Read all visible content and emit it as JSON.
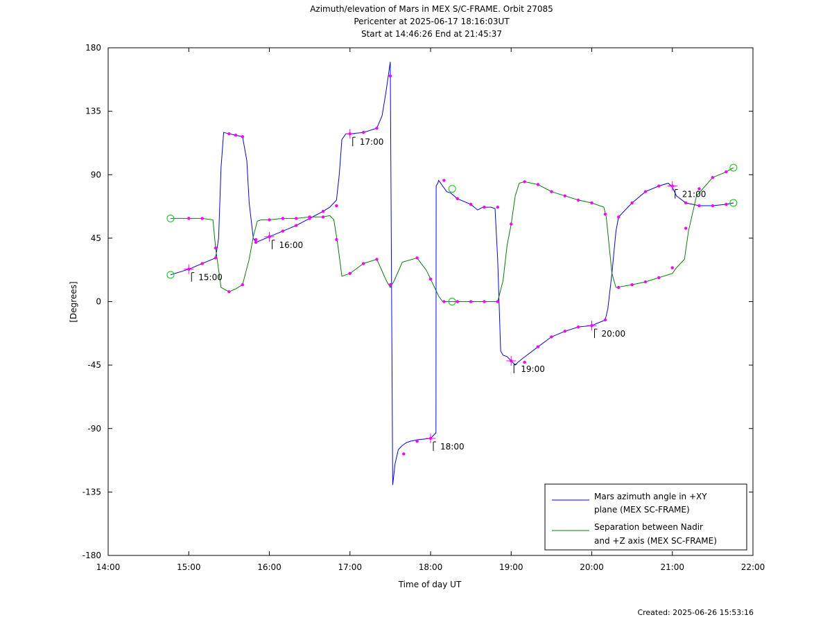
{
  "title": [
    "Azimuth/elevation of Mars in MEX S/C-FRAME.  Orbit 27085",
    "Pericenter at 2025-06-17 18:16:03UT",
    "Start at 14:46:26 End at 21:45:37"
  ],
  "created": "Created: 2025-06-26 15:53:16",
  "chart_data": {
    "type": "line",
    "xlabel": "Time of day UT",
    "ylabel": "[Degrees]",
    "xlim": [
      14,
      22
    ],
    "ylim": [
      -180,
      180
    ],
    "xticks": [
      14,
      15,
      16,
      17,
      18,
      19,
      20,
      21,
      22
    ],
    "xtick_labels": [
      "14:00",
      "15:00",
      "16:00",
      "17:00",
      "18:00",
      "19:00",
      "20:00",
      "21:00",
      "22:00"
    ],
    "yticks": [
      180,
      135,
      90,
      45,
      0,
      -45,
      -90,
      -135,
      -180
    ],
    "ytick_labels": [
      "180",
      "135",
      "90",
      "45",
      "0",
      "-45",
      "-90",
      "-135",
      "-180"
    ],
    "legend_position": "bottom-right",
    "series": [
      {
        "name": "Mars azimuth angle in +XY plane (MEX SC-FRAME)",
        "legend_lines": [
          "Mars azimuth angle in +XY",
          "plane (MEX SC-FRAME)"
        ],
        "color": "#0000ff",
        "x": [
          14.774,
          15.0,
          15.167,
          15.333,
          15.37,
          15.4,
          15.433,
          15.5,
          15.583,
          15.667,
          15.72,
          15.75,
          15.8,
          15.833,
          16.0,
          16.167,
          16.333,
          16.5,
          16.667,
          16.75,
          16.833,
          16.867,
          16.9,
          16.95,
          17.0,
          17.167,
          17.333,
          17.4,
          17.45,
          17.5,
          17.53,
          17.56,
          17.6,
          17.65,
          17.7,
          17.75,
          17.833,
          18.0,
          18.067,
          18.07,
          18.09,
          18.1,
          18.15,
          18.2,
          18.25,
          18.333,
          18.5,
          18.583,
          18.65,
          18.667,
          18.75,
          18.8,
          18.833,
          18.87,
          18.9,
          18.95,
          19.0,
          19.05,
          19.083,
          19.15,
          19.333,
          19.5,
          19.667,
          19.833,
          20.0,
          20.167,
          20.2,
          20.25,
          20.3,
          20.333,
          20.5,
          20.667,
          20.833,
          20.95,
          21.0,
          21.05,
          21.167,
          21.333,
          21.5,
          21.667,
          21.758
        ],
        "y": [
          19,
          23,
          27,
          31,
          45,
          95,
          120,
          119,
          118,
          117,
          100,
          70,
          45,
          42,
          46,
          50,
          54,
          59,
          64,
          67,
          72,
          90,
          115,
          119,
          119,
          120,
          123,
          132,
          150,
          170,
          -130,
          -115,
          -105,
          -102,
          -100,
          -99,
          -98,
          -97,
          -93,
          82,
          84,
          86,
          82,
          78,
          77,
          73,
          69,
          65,
          67,
          67,
          67,
          66,
          30,
          -35,
          -38,
          -39,
          -42,
          -45,
          -43,
          -40,
          -32,
          -25,
          -21,
          -18,
          -17,
          -13,
          -5,
          20,
          50,
          60,
          70,
          78,
          82,
          84,
          81,
          75,
          70,
          68,
          68,
          69,
          70
        ]
      },
      {
        "name": "Separation between Nadir and +Z axis (MEX SC-FRAME)",
        "legend_lines": [
          "Separation between Nadir",
          "and +Z axis (MEX SC-FRAME)"
        ],
        "color": "#008000",
        "x": [
          14.774,
          15.0,
          15.167,
          15.3,
          15.333,
          15.4,
          15.5,
          15.583,
          15.667,
          15.75,
          15.8,
          15.85,
          15.9,
          16.0,
          16.167,
          16.333,
          16.5,
          16.667,
          16.75,
          16.8,
          16.85,
          16.9,
          17.0,
          17.167,
          17.333,
          17.45,
          17.5,
          17.55,
          17.65,
          17.833,
          17.95,
          18.0,
          18.05,
          18.1,
          18.15,
          18.2,
          18.27,
          18.333,
          18.5,
          18.667,
          18.833,
          18.9,
          18.95,
          19.0,
          19.05,
          19.1,
          19.167,
          19.333,
          19.5,
          19.667,
          19.833,
          20.0,
          20.15,
          20.18,
          20.25,
          20.3,
          20.5,
          20.667,
          20.833,
          21.0,
          21.05,
          21.15,
          21.2,
          21.3,
          21.5,
          21.667,
          21.758
        ],
        "y": [
          59,
          59,
          59,
          58,
          38,
          10,
          7,
          9,
          12,
          30,
          46,
          57,
          58,
          58,
          59,
          59,
          60,
          60,
          61,
          58,
          40,
          18,
          20,
          27,
          30,
          15,
          10,
          15,
          28,
          31,
          22,
          16,
          10,
          4,
          0,
          0,
          0,
          0,
          0,
          0,
          0,
          15,
          40,
          55,
          75,
          84,
          85,
          83,
          78,
          75,
          72,
          70,
          67,
          60,
          20,
          10,
          12,
          14,
          17,
          20,
          24,
          30,
          50,
          75,
          88,
          92,
          95
        ]
      }
    ],
    "markers_blue": {
      "x": [
        15.0,
        15.167,
        15.333,
        15.5,
        15.583,
        15.667,
        15.833,
        16.0,
        16.167,
        16.333,
        16.5,
        16.667,
        16.833,
        17.0,
        17.167,
        17.333,
        17.5,
        17.667,
        17.833,
        18.0,
        18.167,
        18.333,
        18.5,
        18.667,
        18.833,
        19.0,
        19.167,
        19.333,
        19.5,
        19.667,
        19.833,
        20.0,
        20.167,
        20.333,
        20.5,
        20.667,
        20.833,
        21.0,
        21.167,
        21.333,
        21.5,
        21.667
      ],
      "y": [
        23,
        27,
        31,
        119,
        118,
        117,
        42,
        46,
        50,
        54,
        59,
        64,
        68,
        119,
        120,
        123,
        160,
        -108,
        -99,
        -97,
        86,
        73,
        69,
        67,
        67,
        -42,
        -43,
        -32,
        -25,
        -21,
        -18,
        -17,
        -13,
        60,
        70,
        78,
        82,
        82,
        70,
        68,
        68,
        69
      ]
    },
    "markers_green": {
      "x": [
        15.0,
        15.167,
        15.333,
        15.5,
        15.667,
        15.833,
        16.0,
        16.167,
        16.333,
        16.5,
        16.667,
        16.833,
        17.0,
        17.167,
        17.333,
        17.5,
        17.833,
        18.0,
        18.167,
        18.333,
        18.5,
        18.667,
        18.833,
        19.0,
        19.167,
        19.333,
        19.5,
        19.667,
        19.833,
        20.0,
        20.167,
        20.333,
        20.5,
        20.667,
        20.833,
        21.0,
        21.167,
        21.333,
        21.5,
        21.667
      ],
      "y": [
        59,
        59,
        38,
        7,
        12,
        44,
        58,
        59,
        59,
        60,
        60,
        44,
        20,
        27,
        30,
        12,
        31,
        16,
        0,
        0,
        0,
        0,
        0,
        55,
        85,
        83,
        78,
        75,
        72,
        70,
        62,
        10,
        12,
        14,
        17,
        24,
        52,
        80,
        88,
        92
      ]
    },
    "start_end_circles": [
      {
        "x": 14.774,
        "y": 19
      },
      {
        "x": 14.774,
        "y": 59
      },
      {
        "x": 18.268,
        "y": 80
      },
      {
        "x": 18.268,
        "y": 0
      },
      {
        "x": 21.758,
        "y": 70
      },
      {
        "x": 21.758,
        "y": 95
      }
    ],
    "hour_annotations": [
      {
        "label": "15:00",
        "x": 15.0,
        "y": 23
      },
      {
        "label": "16:00",
        "x": 16.0,
        "y": 46
      },
      {
        "label": "17:00",
        "x": 17.0,
        "y": 119
      },
      {
        "label": "18:00",
        "x": 18.0,
        "y": -97
      },
      {
        "label": "19:00",
        "x": 19.0,
        "y": -42
      },
      {
        "label": "20:00",
        "x": 20.0,
        "y": -17
      },
      {
        "label": "21:00",
        "x": 21.0,
        "y": 82
      }
    ]
  }
}
